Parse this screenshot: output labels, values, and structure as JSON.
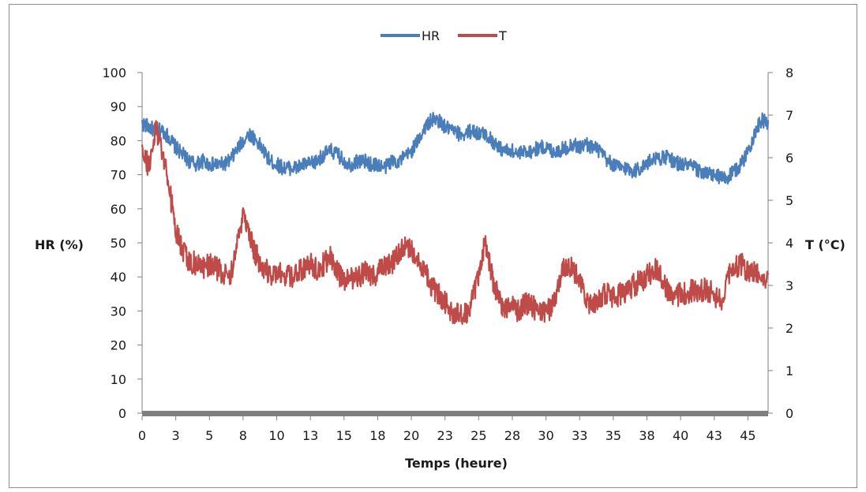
{
  "chart_data": {
    "type": "line",
    "xlabel": "Temps (heure)",
    "ylabel": "HR (%)",
    "y2label": "T (°C)",
    "x_tick_labels": [
      "0",
      "3",
      "5",
      "8",
      "10",
      "13",
      "15",
      "18",
      "20",
      "23",
      "25",
      "28",
      "30",
      "33",
      "35",
      "38",
      "40",
      "43",
      "45"
    ],
    "xlim": [
      0,
      46.5
    ],
    "ylim": [
      0,
      100
    ],
    "y_ticks": [
      0,
      10,
      20,
      30,
      40,
      50,
      60,
      70,
      80,
      90,
      100
    ],
    "y2lim": [
      0,
      8
    ],
    "y2_ticks": [
      0,
      1,
      2,
      3,
      4,
      5,
      6,
      7,
      8
    ],
    "legend": {
      "position": "top",
      "entries": [
        "HR",
        "T"
      ]
    },
    "grid": false,
    "colors": {
      "HR": "#4a7ebb",
      "T": "#be4b48",
      "x_axis_band": "#7f7f7f"
    },
    "series": [
      {
        "name": "HR",
        "axis": "left",
        "unit": "%",
        "x": [
          0,
          0.5,
          1,
          1.5,
          2,
          2.5,
          3,
          3.5,
          4,
          4.5,
          5,
          5.5,
          6,
          6.5,
          7,
          7.5,
          8,
          8.5,
          9,
          9.5,
          10,
          10.5,
          11,
          11.5,
          12,
          12.5,
          13,
          13.5,
          14,
          14.5,
          15,
          15.5,
          16,
          16.5,
          17,
          17.5,
          18,
          18.5,
          19,
          19.5,
          20,
          20.5,
          21,
          21.5,
          22,
          22.5,
          23,
          23.5,
          24,
          24.5,
          25,
          25.5,
          26,
          26.5,
          27,
          27.5,
          28,
          28.5,
          29,
          29.5,
          30,
          30.5,
          31,
          31.5,
          32,
          32.5,
          33,
          33.5,
          34,
          34.5,
          35,
          35.5,
          36,
          36.5,
          37,
          37.5,
          38,
          38.5,
          39,
          39.5,
          40,
          40.5,
          41,
          41.5,
          42,
          42.5,
          43,
          43.5,
          44,
          44.5,
          45,
          45.5,
          46,
          46.5
        ],
        "values": [
          85,
          84,
          83,
          83,
          81,
          78,
          76,
          74,
          73,
          74,
          73,
          73,
          73,
          74,
          77,
          80,
          82,
          80,
          77,
          74,
          73,
          72,
          72,
          72,
          73,
          73,
          74,
          76,
          77,
          76,
          74,
          73,
          74,
          74,
          73,
          73,
          72,
          74,
          74,
          75,
          77,
          80,
          84,
          86,
          86,
          84,
          83,
          82,
          82,
          83,
          82,
          82,
          80,
          78,
          77,
          77,
          76,
          77,
          77,
          78,
          78,
          77,
          77,
          78,
          79,
          78,
          79,
          78,
          77,
          74,
          73,
          72,
          72,
          71,
          72,
          73,
          75,
          75,
          75,
          74,
          73,
          73,
          72,
          71,
          70,
          70,
          69,
          69,
          71,
          73,
          77,
          82,
          86,
          85
        ]
      },
      {
        "name": "T",
        "axis": "right",
        "unit": "°C",
        "x": [
          0,
          0.5,
          1,
          1.5,
          2,
          2.5,
          3,
          3.5,
          4,
          4.5,
          5,
          5.5,
          6,
          6.5,
          7,
          7.5,
          8,
          8.5,
          9,
          9.5,
          10,
          10.5,
          11,
          11.5,
          12,
          12.5,
          13,
          13.5,
          14,
          14.5,
          15,
          15.5,
          16,
          16.5,
          17,
          17.5,
          18,
          18.5,
          19,
          19.5,
          20,
          20.5,
          21,
          21.5,
          22,
          22.5,
          23,
          23.5,
          24,
          24.5,
          25,
          25.5,
          26,
          26.5,
          27,
          27.5,
          28,
          28.5,
          29,
          29.5,
          30,
          30.5,
          31,
          31.5,
          32,
          32.5,
          33,
          33.5,
          34,
          34.5,
          35,
          35.5,
          36,
          36.5,
          37,
          37.5,
          38,
          38.5,
          39,
          39.5,
          40,
          40.5,
          41,
          41.5,
          42,
          42.5,
          43,
          43.5,
          44,
          44.5,
          45,
          45.5,
          46,
          46.5
        ],
        "values": [
          6.1,
          5.8,
          6.7,
          6.2,
          5.3,
          4.3,
          3.8,
          3.6,
          3.5,
          3.4,
          3.5,
          3.4,
          3.3,
          3.2,
          3.8,
          4.6,
          4.1,
          3.7,
          3.4,
          3.3,
          3.2,
          3.3,
          3.2,
          3.3,
          3.4,
          3.5,
          3.4,
          3.5,
          3.7,
          3.3,
          3.1,
          3.2,
          3.2,
          3.3,
          3.2,
          3.3,
          3.4,
          3.5,
          3.7,
          3.9,
          3.8,
          3.7,
          3.3,
          3.0,
          2.8,
          2.6,
          2.4,
          2.3,
          2.3,
          2.6,
          3.3,
          4.0,
          3.2,
          2.7,
          2.4,
          2.5,
          2.4,
          2.6,
          2.5,
          2.4,
          2.3,
          2.6,
          3.1,
          3.5,
          3.4,
          3.1,
          2.6,
          2.6,
          2.7,
          2.8,
          2.7,
          2.8,
          2.9,
          3.0,
          3.1,
          3.2,
          3.4,
          3.3,
          2.9,
          2.7,
          2.8,
          2.8,
          2.9,
          2.9,
          2.9,
          2.8,
          2.6,
          3.3,
          3.4,
          3.5,
          3.3,
          3.3,
          3.3,
          3.1
        ]
      }
    ]
  }
}
